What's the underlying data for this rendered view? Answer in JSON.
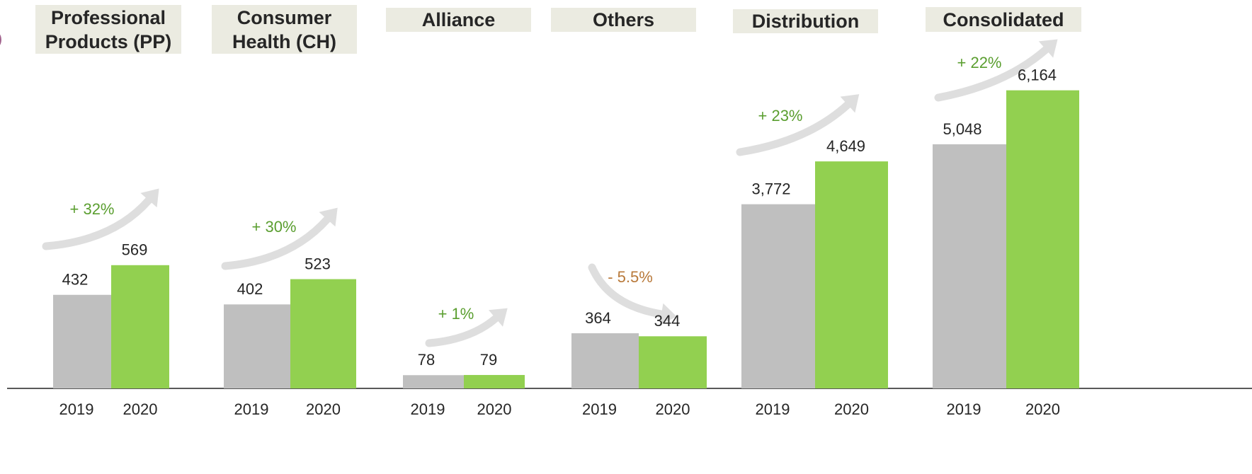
{
  "fragment": ")",
  "chart_data": [
    {
      "type": "bar",
      "title": "Professional Products (PP)",
      "categories": [
        "2019",
        "2020"
      ],
      "values": [
        432,
        569
      ],
      "colors": [
        "#bfbfbf",
        "#92d050"
      ],
      "ylim": [
        0,
        1630
      ],
      "annotation": "+ 32%",
      "annotation_color": "#5a9e2f"
    },
    {
      "type": "bar",
      "title": "Consumer Health (CH)",
      "categories": [
        "2019",
        "2020"
      ],
      "values": [
        402,
        523
      ],
      "colors": [
        "#bfbfbf",
        "#92d050"
      ],
      "ylim": [
        0,
        1690
      ],
      "annotation": "+ 30%",
      "annotation_color": "#5a9e2f"
    },
    {
      "type": "bar",
      "title": "Alliance",
      "categories": [
        "2019",
        "2020"
      ],
      "values": [
        78,
        79
      ],
      "colors": [
        "#bfbfbf",
        "#92d050"
      ],
      "ylim": [
        0,
        2080
      ],
      "annotation": "+ 1%",
      "annotation_color": "#5a9e2f"
    },
    {
      "type": "bar",
      "title": "Others",
      "categories": [
        "2019",
        "2020"
      ],
      "values": [
        364,
        344
      ],
      "colors": [
        "#bfbfbf",
        "#92d050"
      ],
      "ylim": [
        0,
        2330
      ],
      "annotation": "- 5.5%",
      "annotation_color": "#b8793a"
    },
    {
      "type": "bar",
      "title": "Distribution",
      "categories": [
        "2019",
        "2020"
      ],
      "values": [
        3772,
        4649
      ],
      "value_labels": [
        "3,772",
        "4,649"
      ],
      "colors": [
        "#bfbfbf",
        "#92d050"
      ],
      "ylim": [
        0,
        7230
      ],
      "annotation": "+ 23%",
      "annotation_color": "#5a9e2f"
    },
    {
      "type": "bar",
      "title": "Consolidated",
      "categories": [
        "2019",
        "2020"
      ],
      "values": [
        5048,
        6164
      ],
      "value_labels": [
        "5,048",
        "6,164"
      ],
      "colors": [
        "#bfbfbf",
        "#92d050"
      ],
      "ylim": [
        0,
        7300
      ],
      "annotation": "+ 22%",
      "annotation_color": "#5a9e2f"
    }
  ]
}
